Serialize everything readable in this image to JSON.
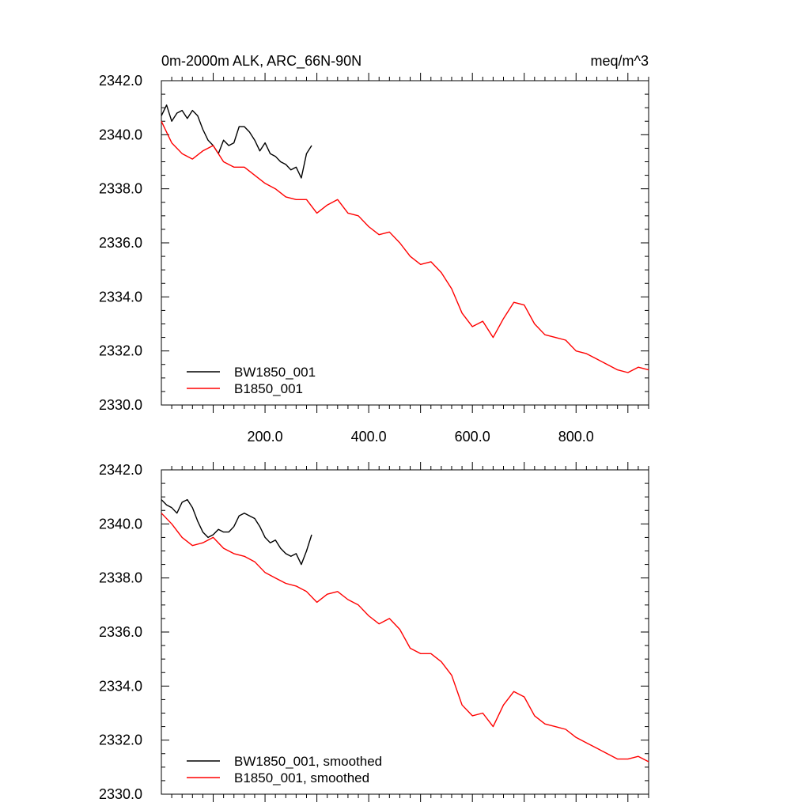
{
  "chart_data": [
    {
      "type": "line",
      "title_left": "0m-2000m ALK, ARC_66N-90N",
      "title_right": "meq/m^3",
      "xlim": [
        0,
        940
      ],
      "ylim": [
        2330,
        2342
      ],
      "yticks": [
        "2342.0",
        "2340.0",
        "2338.0",
        "2336.0",
        "2334.0",
        "2332.0",
        "2330.0"
      ],
      "xticks": [
        "200.0",
        "400.0",
        "600.0",
        "800.0"
      ],
      "series": [
        {
          "name": "BW1850_001",
          "color": "#000000",
          "x": [
            0,
            10,
            20,
            30,
            40,
            50,
            60,
            70,
            80,
            90,
            100,
            110,
            120,
            130,
            140,
            150,
            160,
            170,
            180,
            190,
            200,
            210,
            220,
            230,
            240,
            250,
            260,
            270,
            280,
            290
          ],
          "values": [
            2340.7,
            2341.1,
            2340.5,
            2340.8,
            2340.9,
            2340.6,
            2340.9,
            2340.7,
            2340.2,
            2339.8,
            2339.6,
            2339.3,
            2339.8,
            2339.6,
            2339.7,
            2340.3,
            2340.3,
            2340.1,
            2339.8,
            2339.4,
            2339.7,
            2339.3,
            2339.2,
            2339.0,
            2338.9,
            2338.7,
            2338.8,
            2338.4,
            2339.3,
            2339.6
          ]
        },
        {
          "name": "B1850_001",
          "color": "#ff0000",
          "x": [
            0,
            20,
            40,
            60,
            80,
            100,
            120,
            140,
            160,
            180,
            200,
            220,
            240,
            260,
            280,
            300,
            320,
            340,
            360,
            380,
            400,
            420,
            440,
            460,
            480,
            500,
            520,
            540,
            560,
            580,
            600,
            620,
            640,
            660,
            680,
            700,
            720,
            740,
            760,
            780,
            800,
            820,
            840,
            860,
            880,
            900,
            920,
            940
          ],
          "values": [
            2340.5,
            2339.7,
            2339.3,
            2339.1,
            2339.4,
            2339.6,
            2339.0,
            2338.8,
            2338.8,
            2338.5,
            2338.2,
            2338.0,
            2337.7,
            2337.6,
            2337.6,
            2337.1,
            2337.4,
            2337.6,
            2337.1,
            2337.0,
            2336.6,
            2336.3,
            2336.4,
            2336.0,
            2335.5,
            2335.2,
            2335.3,
            2334.9,
            2334.3,
            2333.4,
            2332.9,
            2333.1,
            2332.5,
            2333.2,
            2333.8,
            2333.7,
            2333.0,
            2332.6,
            2332.5,
            2332.4,
            2332.0,
            2331.9,
            2331.7,
            2331.5,
            2331.3,
            2331.2,
            2331.4,
            2331.3
          ]
        }
      ]
    },
    {
      "type": "line",
      "xlim": [
        0,
        940
      ],
      "ylim": [
        2330,
        2342
      ],
      "yticks": [
        "2342.0",
        "2340.0",
        "2338.0",
        "2336.0",
        "2334.0",
        "2332.0",
        "2330.0"
      ],
      "series": [
        {
          "name": "BW1850_001, smoothed",
          "color": "#000000",
          "x": [
            0,
            10,
            20,
            30,
            40,
            50,
            60,
            70,
            80,
            90,
            100,
            110,
            120,
            130,
            140,
            150,
            160,
            170,
            180,
            190,
            200,
            210,
            220,
            230,
            240,
            250,
            260,
            270,
            280,
            290
          ],
          "values": [
            2340.9,
            2340.7,
            2340.6,
            2340.4,
            2340.8,
            2340.9,
            2340.6,
            2340.1,
            2339.7,
            2339.5,
            2339.6,
            2339.8,
            2339.7,
            2339.7,
            2339.9,
            2340.3,
            2340.4,
            2340.3,
            2340.2,
            2339.9,
            2339.5,
            2339.3,
            2339.4,
            2339.1,
            2338.9,
            2338.8,
            2338.9,
            2338.5,
            2339.0,
            2339.6
          ]
        },
        {
          "name": "B1850_001, smoothed",
          "color": "#ff0000",
          "x": [
            0,
            20,
            40,
            60,
            80,
            100,
            120,
            140,
            160,
            180,
            200,
            220,
            240,
            260,
            280,
            300,
            320,
            340,
            360,
            380,
            400,
            420,
            440,
            460,
            480,
            500,
            520,
            540,
            560,
            580,
            600,
            620,
            640,
            660,
            680,
            700,
            720,
            740,
            760,
            780,
            800,
            820,
            840,
            860,
            880,
            900,
            920,
            940
          ],
          "values": [
            2340.4,
            2340.0,
            2339.5,
            2339.2,
            2339.3,
            2339.5,
            2339.1,
            2338.9,
            2338.8,
            2338.6,
            2338.2,
            2338.0,
            2337.8,
            2337.7,
            2337.5,
            2337.1,
            2337.4,
            2337.5,
            2337.2,
            2337.0,
            2336.6,
            2336.3,
            2336.5,
            2336.1,
            2335.4,
            2335.2,
            2335.2,
            2334.9,
            2334.4,
            2333.3,
            2332.9,
            2333.0,
            2332.5,
            2333.3,
            2333.8,
            2333.6,
            2332.9,
            2332.6,
            2332.5,
            2332.4,
            2332.1,
            2331.9,
            2331.7,
            2331.5,
            2331.3,
            2331.3,
            2331.4,
            2331.2
          ]
        }
      ]
    }
  ]
}
